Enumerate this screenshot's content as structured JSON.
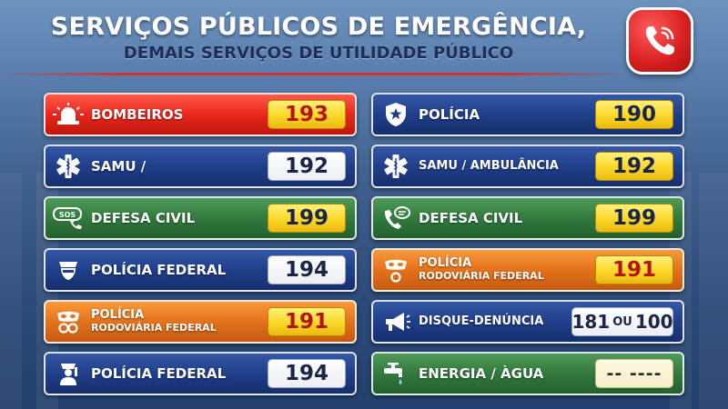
{
  "header": {
    "title": "SERVIÇOS PÚBLICOS DE EMERGÊNCIA,",
    "subtitle": "DEMAIS SERVIÇOS DE UTILIDADE PÚBLICO",
    "badge_icon": "phone-icon"
  },
  "colors": {
    "red": "#e8271c",
    "blue": "#203f8a",
    "green": "#327a3d",
    "orange": "#e4721c",
    "yellow_number": "#fbd728"
  },
  "left_cards": [
    {
      "icon": "siren-icon",
      "label": "BOMBEIROS",
      "number": "193"
    },
    {
      "icon": "star-of-life-icon",
      "label": "SAMU /",
      "number": "192"
    },
    {
      "icon": "sos-phone-icon",
      "label": "DEFESA CIVIL",
      "number": "199"
    },
    {
      "icon": "police-badge-icon",
      "label": "POLÍCIA FEDERAL",
      "number": "194"
    },
    {
      "icon": "mask-handcuffs-icon",
      "label_line1": "POLÍCIA",
      "label_line2": "RODOVIÁRIA FEDERAL",
      "number": "191"
    },
    {
      "icon": "police-officer-icon",
      "label": "POLÍCIA FEDERAL",
      "number": "194"
    }
  ],
  "right_cards": [
    {
      "icon": "shield-star-icon",
      "label": "POLÍCIA",
      "number": "190"
    },
    {
      "icon": "star-of-life-icon",
      "label": "SAMU / AMBULÂNCIA",
      "number": "192"
    },
    {
      "icon": "phone-chat-icon",
      "label": "DEFESA CIVIL",
      "number": "199"
    },
    {
      "icon": "mask-handcuffs-icon",
      "label_line1": "POLÍCIA",
      "label_line2": "RODOVIÁRIA FEDERAL",
      "number": "191"
    },
    {
      "icon": "megaphone-icon",
      "label": "DISQUE-DENÚNCIA",
      "number_a": "181",
      "number_sep": "OU",
      "number_b": "100"
    },
    {
      "icon": "faucet-icon",
      "label": "ENERGIA / ÀGUA",
      "number": "-- ----"
    }
  ]
}
